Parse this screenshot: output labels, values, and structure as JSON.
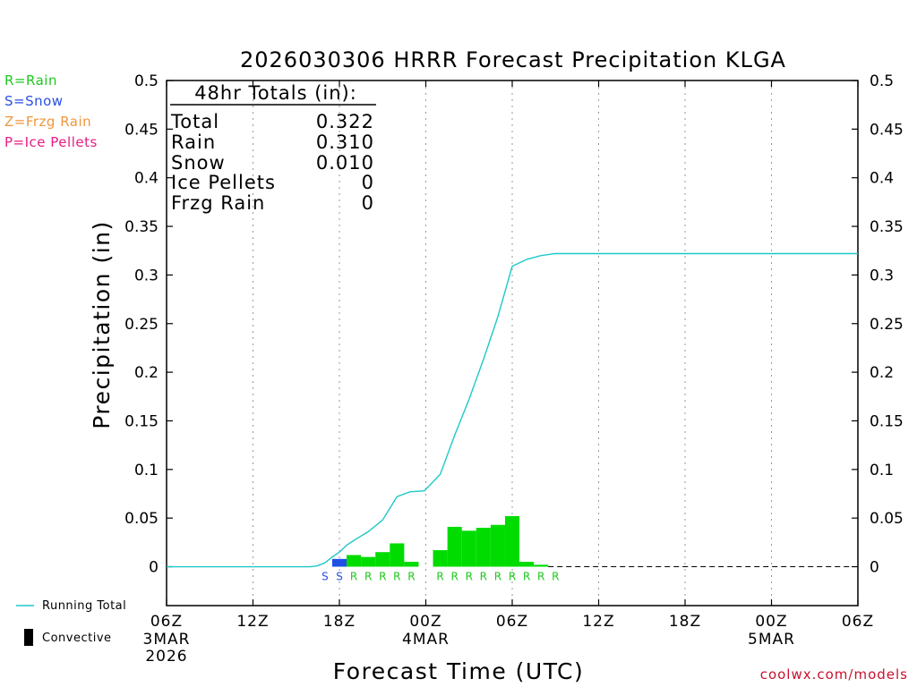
{
  "chart_data": {
    "type": "bar",
    "title": "2026030306 HRRR Forecast Precipitation KLGA",
    "xlabel": "Forecast Time (UTC)",
    "ylabel": "Precipitation (in)",
    "ylim": [
      -0.04,
      0.5
    ],
    "xlim_hours": [
      0,
      48
    ],
    "y_ticks": [
      "0",
      "0.05",
      "0.1",
      "0.15",
      "0.2",
      "0.25",
      "0.3",
      "0.35",
      "0.4",
      "0.45",
      "0.5"
    ],
    "y_tick_values": [
      0,
      0.05,
      0.1,
      0.15,
      0.2,
      0.25,
      0.3,
      0.35,
      0.4,
      0.45,
      0.5
    ],
    "x_ticks": [
      {
        "hour": 0,
        "label": "06Z",
        "sub1": "3MAR",
        "sub2": "2026"
      },
      {
        "hour": 6,
        "label": "12Z",
        "sub1": "",
        "sub2": ""
      },
      {
        "hour": 12,
        "label": "18Z",
        "sub1": "",
        "sub2": ""
      },
      {
        "hour": 18,
        "label": "00Z",
        "sub1": "4MAR",
        "sub2": ""
      },
      {
        "hour": 24,
        "label": "06Z",
        "sub1": "",
        "sub2": ""
      },
      {
        "hour": 30,
        "label": "12Z",
        "sub1": "",
        "sub2": ""
      },
      {
        "hour": 36,
        "label": "18Z",
        "sub1": "",
        "sub2": ""
      },
      {
        "hour": 42,
        "label": "00Z",
        "sub1": "5MAR",
        "sub2": ""
      },
      {
        "hour": 48,
        "label": "06Z",
        "sub1": "",
        "sub2": ""
      }
    ],
    "hourly_bars": [
      {
        "hour": 12,
        "value": 0.008,
        "type": "S"
      },
      {
        "hour": 13,
        "value": 0.012,
        "type": "R"
      },
      {
        "hour": 14,
        "value": 0.01,
        "type": "R"
      },
      {
        "hour": 15,
        "value": 0.015,
        "type": "R"
      },
      {
        "hour": 16,
        "value": 0.024,
        "type": "R"
      },
      {
        "hour": 17,
        "value": 0.005,
        "type": "R"
      },
      {
        "hour": 19,
        "value": 0.017,
        "type": "R"
      },
      {
        "hour": 20,
        "value": 0.041,
        "type": "R"
      },
      {
        "hour": 21,
        "value": 0.037,
        "type": "R"
      },
      {
        "hour": 22,
        "value": 0.04,
        "type": "R"
      },
      {
        "hour": 23,
        "value": 0.043,
        "type": "R"
      },
      {
        "hour": 24,
        "value": 0.052,
        "type": "R"
      },
      {
        "hour": 25,
        "value": 0.005,
        "type": "R"
      },
      {
        "hour": 26,
        "value": 0.002,
        "type": "R"
      }
    ],
    "type_markers": [
      {
        "hour": 11,
        "type": "S"
      },
      {
        "hour": 12,
        "type": "S"
      },
      {
        "hour": 13,
        "type": "R"
      },
      {
        "hour": 14,
        "type": "R"
      },
      {
        "hour": 15,
        "type": "R"
      },
      {
        "hour": 16,
        "type": "R"
      },
      {
        "hour": 17,
        "type": "R"
      },
      {
        "hour": 19,
        "type": "R"
      },
      {
        "hour": 20,
        "type": "R"
      },
      {
        "hour": 21,
        "type": "R"
      },
      {
        "hour": 22,
        "type": "R"
      },
      {
        "hour": 23,
        "type": "R"
      },
      {
        "hour": 24,
        "type": "R"
      },
      {
        "hour": 25,
        "type": "R"
      },
      {
        "hour": 26,
        "type": "R"
      },
      {
        "hour": 27,
        "type": "R"
      }
    ],
    "running_total": [
      [
        0,
        0
      ],
      [
        10,
        0
      ],
      [
        10.5,
        0.001
      ],
      [
        11,
        0.004
      ],
      [
        11.5,
        0.01
      ],
      [
        12,
        0.015
      ],
      [
        12.5,
        0.022
      ],
      [
        13,
        0.027
      ],
      [
        14,
        0.036
      ],
      [
        15,
        0.048
      ],
      [
        16,
        0.072
      ],
      [
        16.9,
        0.077
      ],
      [
        17.9,
        0.078
      ],
      [
        19,
        0.095
      ],
      [
        20,
        0.135
      ],
      [
        21,
        0.172
      ],
      [
        22,
        0.213
      ],
      [
        23,
        0.257
      ],
      [
        24,
        0.309
      ],
      [
        25,
        0.316
      ],
      [
        26,
        0.32
      ],
      [
        27,
        0.322
      ],
      [
        48,
        0.322
      ]
    ],
    "totals_box": {
      "header": "48hr Totals (in):",
      "rows": [
        {
          "label": "Total",
          "value": "0.322"
        },
        {
          "label": "Rain",
          "value": "0.310"
        },
        {
          "label": "Snow",
          "value": "0.010"
        },
        {
          "label": "Ice Pellets",
          "value": "0"
        },
        {
          "label": "Frzg Rain",
          "value": "0"
        }
      ]
    }
  },
  "type_legend": [
    {
      "text": "R=Rain",
      "color": "#1ec81e"
    },
    {
      "text": "S=Snow",
      "color": "#2850e6"
    },
    {
      "text": "Z=Frzg Rain",
      "color": "#f0963c"
    },
    {
      "text": "P=Ice Pellets",
      "color": "#e61e82"
    }
  ],
  "bottom_legend": {
    "running_total": "Running Total",
    "convective": "Convective"
  },
  "colors": {
    "rain": "#00dc00",
    "snow": "#1e50e6",
    "running_total": "#1ec8c8",
    "marker_rain": "#1ec81e",
    "marker_snow": "#2850e6",
    "credit": "#c8102e"
  },
  "credit": "coolwx.com/models"
}
